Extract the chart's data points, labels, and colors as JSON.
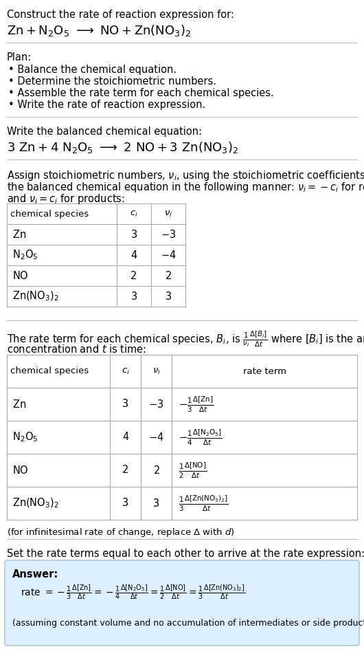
{
  "bg_color": "#ffffff",
  "text_color": "#000000",
  "answer_bg": "#ddeeff",
  "answer_border": "#aaccdd",
  "separator_color": "#bbbbbb",
  "table_line_color": "#aaaaaa",
  "title_line1": "Construct the rate of reaction expression for:",
  "plan_header": "Plan:",
  "plan_items": [
    "• Balance the chemical equation.",
    "• Determine the stoichiometric numbers.",
    "• Assemble the rate term for each chemical species.",
    "• Write the rate of reaction expression."
  ],
  "balanced_header": "Write the balanced chemical equation:",
  "assign_line1": "Assign stoichiometric numbers, $\\nu_i$, using the stoichiometric coefficients, $c_i$, from",
  "assign_line2": "the balanced chemical equation in the following manner: $\\nu_i = -c_i$ for reactants",
  "assign_line3": "and $\\nu_i = c_i$ for products:",
  "rate_line1": "The rate term for each chemical species, $B_i$, is $\\frac{1}{\\nu_i}\\frac{\\Delta[B_i]}{\\Delta t}$ where $[B_i]$ is the amount",
  "rate_line2": "concentration and $t$ is time:",
  "infinitesimal_note": "(for infinitesimal rate of change, replace Δ with $d$)",
  "set_equal_text": "Set the rate terms equal to each other to arrive at the rate expression:",
  "answer_label": "Answer:",
  "assuming_note": "(assuming constant volume and no accumulation of intermediates or side products)"
}
